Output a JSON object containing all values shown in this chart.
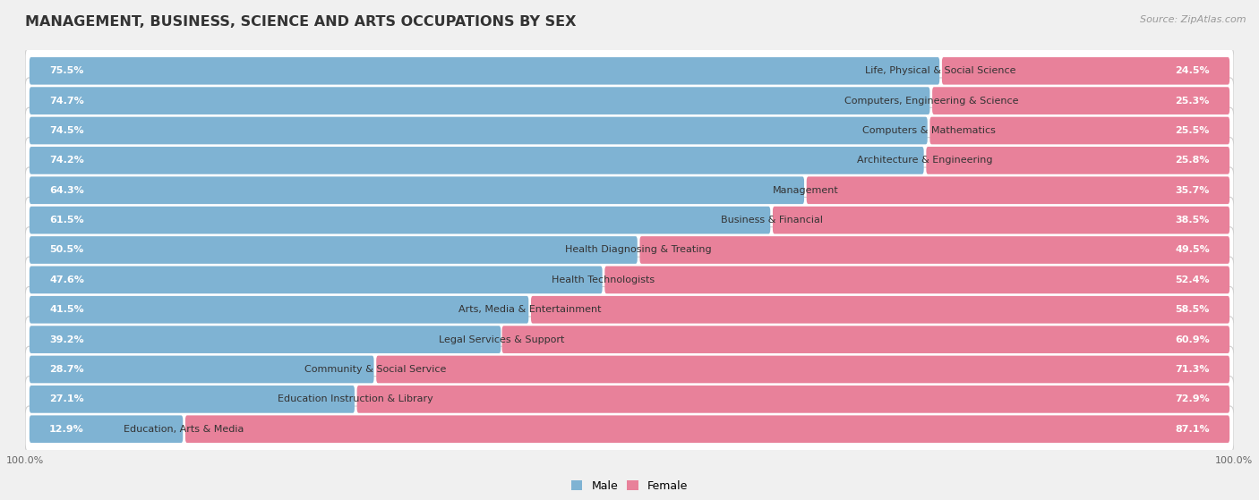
{
  "title": "MANAGEMENT, BUSINESS, SCIENCE AND ARTS OCCUPATIONS BY SEX",
  "source": "Source: ZipAtlas.com",
  "categories": [
    "Life, Physical & Social Science",
    "Computers, Engineering & Science",
    "Computers & Mathematics",
    "Architecture & Engineering",
    "Management",
    "Business & Financial",
    "Health Diagnosing & Treating",
    "Health Technologists",
    "Arts, Media & Entertainment",
    "Legal Services & Support",
    "Community & Social Service",
    "Education Instruction & Library",
    "Education, Arts & Media"
  ],
  "male_pct": [
    75.5,
    74.7,
    74.5,
    74.2,
    64.3,
    61.5,
    50.5,
    47.6,
    41.5,
    39.2,
    28.7,
    27.1,
    12.9
  ],
  "female_pct": [
    24.5,
    25.3,
    25.5,
    25.8,
    35.7,
    38.5,
    49.5,
    52.4,
    58.5,
    60.9,
    71.3,
    72.9,
    87.1
  ],
  "male_color": "#7fb3d3",
  "female_color": "#e8819a",
  "bg_color": "#f0f0f0",
  "row_bg_color": "#f7f7f7",
  "row_border_color": "#d0d0d0",
  "title_fontsize": 11.5,
  "cat_fontsize": 8.0,
  "pct_fontsize": 8.0,
  "legend_fontsize": 9,
  "source_fontsize": 8,
  "axis_fontsize": 8
}
